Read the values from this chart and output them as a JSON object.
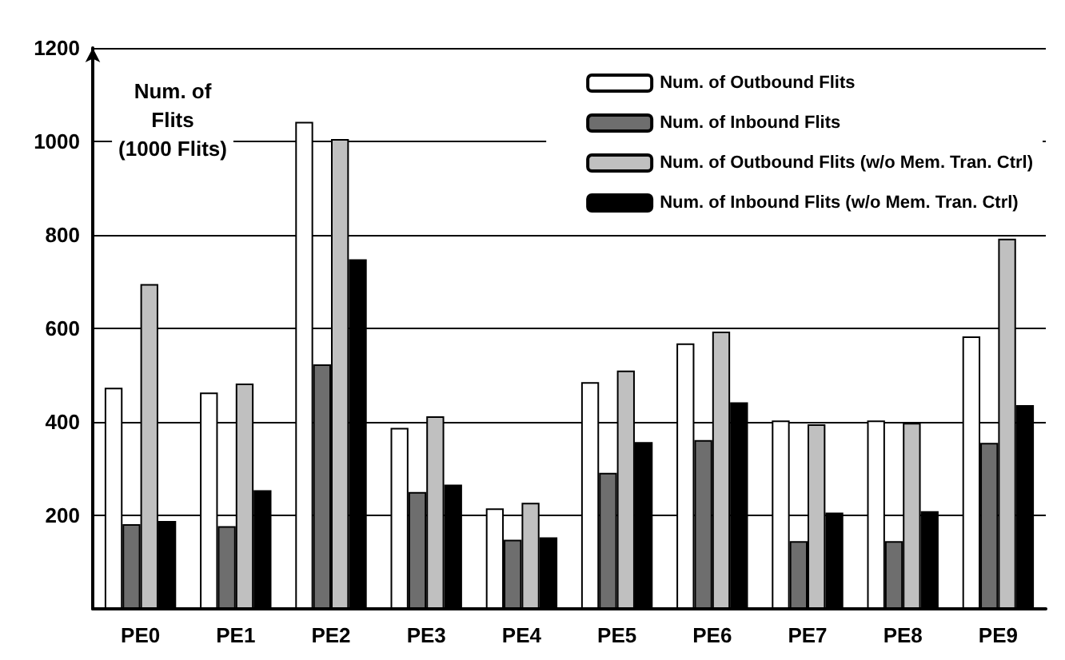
{
  "chart_data": {
    "type": "bar",
    "ylabel": "Num. of\nFlits\n(1000 Flits)",
    "categories": [
      "PE0",
      "PE1",
      "PE2",
      "PE3",
      "PE4",
      "PE5",
      "PE6",
      "PE7",
      "PE8",
      "PE9"
    ],
    "series": [
      {
        "name": "Num. of Outbound Flits",
        "color": "#ffffff",
        "values": [
          473,
          463,
          1042,
          387,
          215,
          485,
          568,
          403,
          403,
          583
        ]
      },
      {
        "name": "Num. of Inbound Flits",
        "color": "#6e6e6e",
        "values": [
          181,
          177,
          523,
          250,
          148,
          291,
          361,
          145,
          145,
          355
        ]
      },
      {
        "name": "Num. of Outbound Flits (w/o Mem. Tran. Ctrl)",
        "color": "#c0c0c0",
        "values": [
          695,
          482,
          1005,
          412,
          227,
          510,
          593,
          395,
          398,
          792
        ]
      },
      {
        "name": "Num. of Inbound Flits (w/o Mem. Tran. Ctrl)",
        "color": "#000000",
        "values": [
          188,
          254,
          748,
          266,
          153,
          357,
          442,
          206,
          209,
          436
        ]
      }
    ],
    "ylim": [
      0,
      1200
    ],
    "yticks": [
      200,
      400,
      600,
      800,
      1000,
      1200
    ],
    "grid": "y",
    "legend": "top right"
  }
}
